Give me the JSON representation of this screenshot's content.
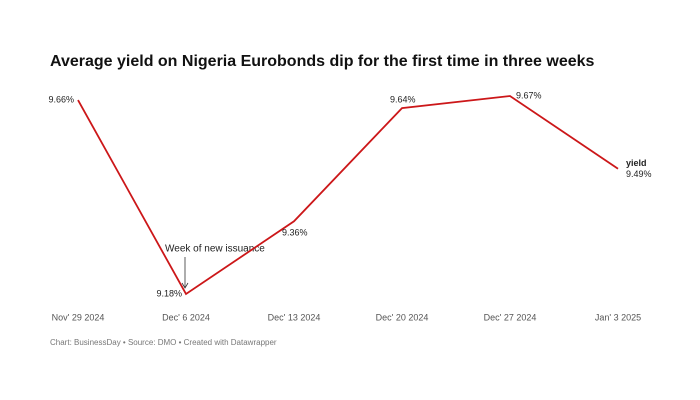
{
  "chart_data": {
    "type": "line",
    "title": "Average yield on Nigeria Eurobonds dip for the first time in three weeks",
    "categories": [
      "Nov' 29 2024",
      "Dec' 6 2024",
      "Dec' 13 2024",
      "Dec' 20 2024",
      "Dec' 27 2024",
      "Jan' 3 2025"
    ],
    "series": [
      {
        "name": "yield",
        "color": "#cc1719",
        "values": [
          9.66,
          9.18,
          9.36,
          9.64,
          9.67,
          9.49
        ],
        "value_labels": [
          "9.66%",
          "9.18%",
          "9.36%",
          "9.64%",
          "9.67%",
          "9.49%"
        ]
      }
    ],
    "annotation": "Week of new issuance",
    "footer": "Chart: BusinessDay • Source: DMO • Created with Datawrapper"
  }
}
